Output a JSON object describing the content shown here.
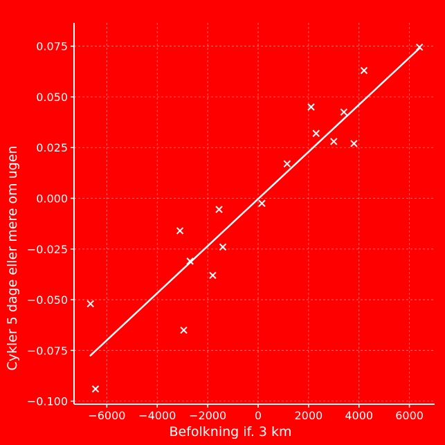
{
  "colors": {
    "background": "#ff0000",
    "foreground": "#ffffff",
    "grid": "#ff8c8c"
  },
  "chart_data": {
    "type": "scatter",
    "title": "",
    "xlabel": "Befolkning if. 3 km",
    "ylabel": "Cykler 5 dage eller mere om ugen",
    "xlim": [
      -7300,
      7000
    ],
    "ylim": [
      -0.1015,
      0.0865
    ],
    "grid": true,
    "marker": "x",
    "xticks": [
      -6000,
      -4000,
      -2000,
      0,
      2000,
      4000,
      6000
    ],
    "xtick_labels": [
      "−6000",
      "−4000",
      "−2000",
      "0",
      "2000",
      "4000",
      "6000"
    ],
    "yticks": [
      0.075,
      0.05,
      0.025,
      0.0,
      -0.025,
      -0.05,
      -0.075,
      -0.1
    ],
    "ytick_labels": [
      "0.075",
      "0.050",
      "0.025",
      "0.000",
      "−0.025",
      "−0.050",
      "−0.075",
      "−0.100"
    ],
    "points": [
      {
        "x": -6650,
        "y": -0.052
      },
      {
        "x": -6450,
        "y": -0.094
      },
      {
        "x": -3100,
        "y": -0.016
      },
      {
        "x": -2950,
        "y": -0.065
      },
      {
        "x": -2700,
        "y": -0.031
      },
      {
        "x": -1800,
        "y": -0.038
      },
      {
        "x": -1550,
        "y": -0.0055
      },
      {
        "x": -1400,
        "y": -0.024
      },
      {
        "x": 150,
        "y": -0.0025
      },
      {
        "x": 1150,
        "y": 0.017
      },
      {
        "x": 2100,
        "y": 0.045
      },
      {
        "x": 2300,
        "y": 0.032
      },
      {
        "x": 3000,
        "y": 0.028
      },
      {
        "x": 3400,
        "y": 0.0425
      },
      {
        "x": 3800,
        "y": 0.027
      },
      {
        "x": 4200,
        "y": 0.063
      },
      {
        "x": 6400,
        "y": 0.0745
      }
    ],
    "fit_line": {
      "x": [
        -6650,
        6400
      ],
      "y": [
        -0.0775,
        0.074
      ]
    }
  }
}
